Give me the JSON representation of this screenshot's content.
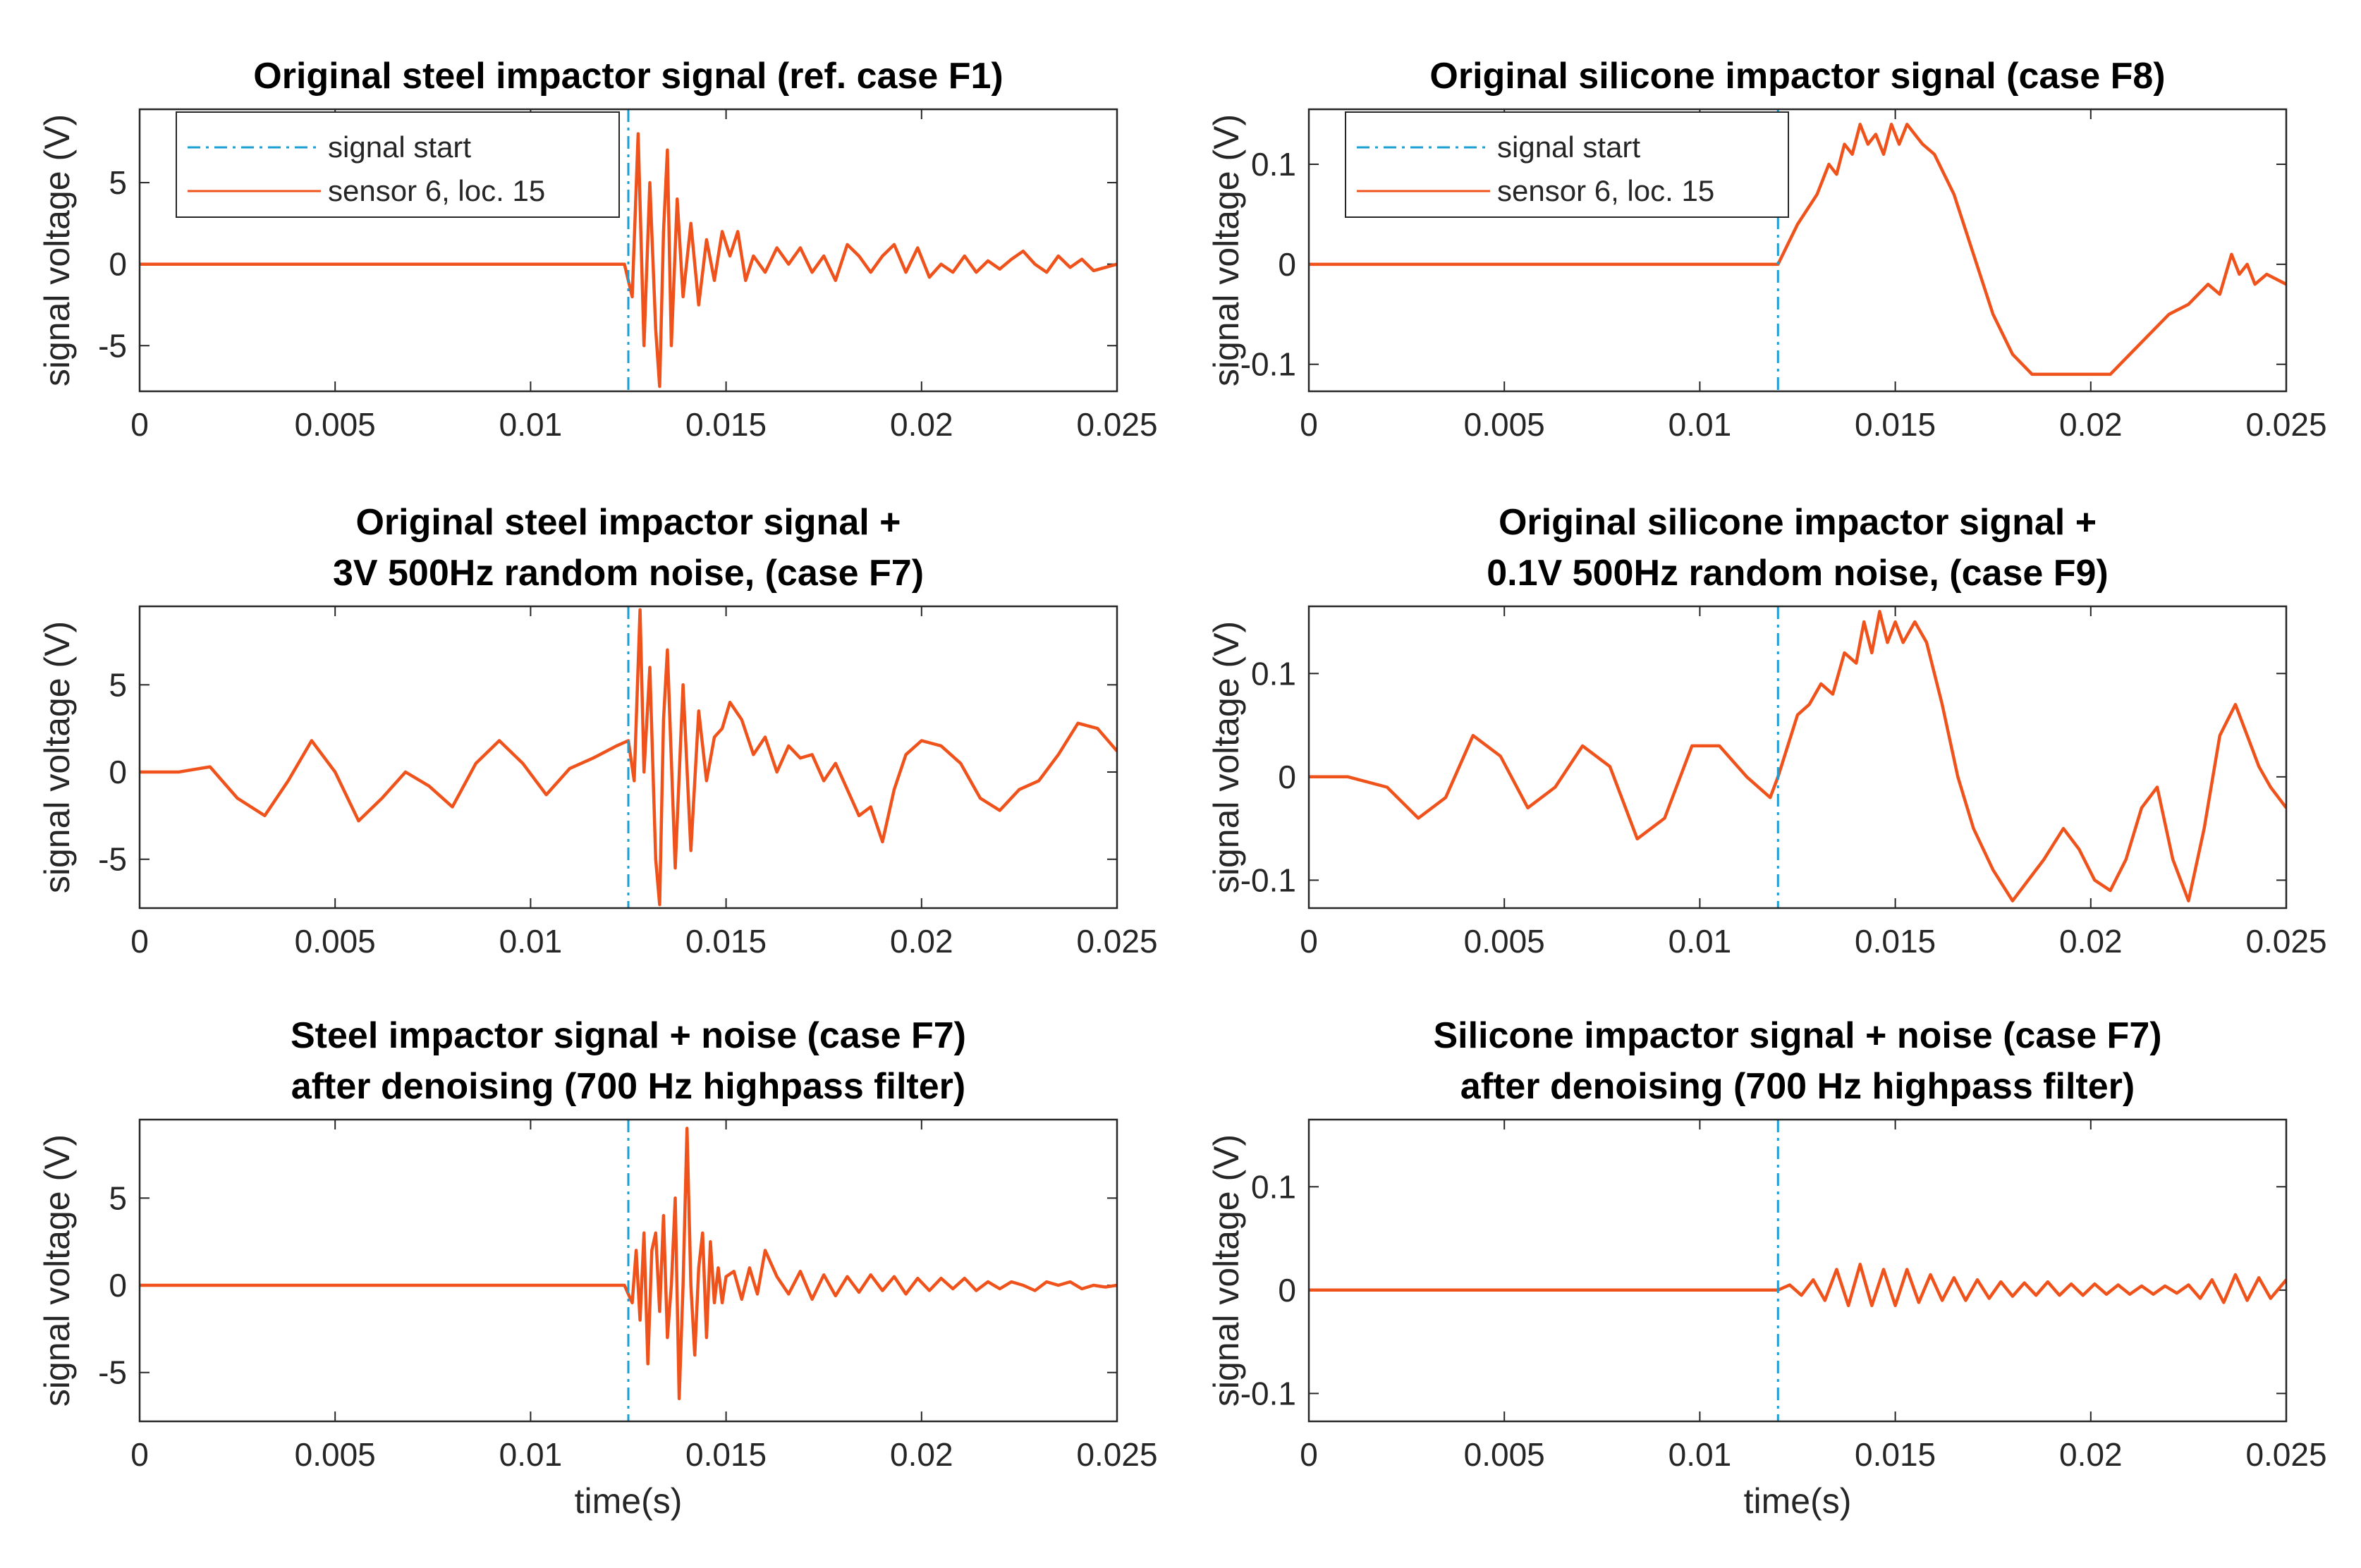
{
  "chart_data": [
    {
      "type": "line",
      "title": [
        "Original steel impactor signal (ref. case F1)"
      ],
      "xlabel": "",
      "ylabel": "signal voltage (V)",
      "xlim": [
        0,
        0.025
      ],
      "ylim": [
        -7.8,
        9.5
      ],
      "xticks": [
        0,
        0.005,
        0.01,
        0.015,
        0.02,
        0.025
      ],
      "xtick_labels": [
        "0",
        "0.005",
        "0.01",
        "0.015",
        "0.02",
        "0.025"
      ],
      "yticks": [
        -5,
        0,
        5
      ],
      "ytick_labels": [
        "-5",
        "0",
        "5"
      ],
      "signal_start": 0.0125,
      "legend": {
        "position": "top-left",
        "entries": [
          "signal start",
          "sensor 6, loc. 15"
        ]
      },
      "series": [
        {
          "name": "sensor 6, loc. 15",
          "color": "#f0521c",
          "x": [
            0,
            0.0124,
            0.0126,
            0.01275,
            0.0129,
            0.01305,
            0.0132,
            0.0133,
            0.0134,
            0.0135,
            0.0136,
            0.01375,
            0.0139,
            0.0141,
            0.0143,
            0.0145,
            0.0147,
            0.0149,
            0.0151,
            0.0153,
            0.0155,
            0.0157,
            0.016,
            0.0163,
            0.0166,
            0.0169,
            0.0172,
            0.0175,
            0.0178,
            0.0181,
            0.0184,
            0.0187,
            0.019,
            0.0193,
            0.0196,
            0.0199,
            0.0202,
            0.0205,
            0.0208,
            0.0211,
            0.0214,
            0.0217,
            0.022,
            0.0223,
            0.0226,
            0.0229,
            0.0232,
            0.0235,
            0.0238,
            0.0241,
            0.0244,
            0.0247,
            0.025
          ],
          "y": [
            0,
            0,
            -2,
            8,
            -5,
            5,
            -4,
            -7.5,
            2,
            7,
            -5,
            4,
            -2,
            2.5,
            -2.5,
            1.5,
            -1,
            2,
            0.5,
            2,
            -1,
            0.5,
            -0.5,
            1,
            0,
            1,
            -0.5,
            0.5,
            -1,
            1.2,
            0.5,
            -0.5,
            0.5,
            1.2,
            -0.5,
            1,
            -0.8,
            0,
            -0.5,
            0.5,
            -0.5,
            0.2,
            -0.3,
            0.3,
            0.8,
            0,
            -0.5,
            0.5,
            -0.2,
            0.3,
            -0.4,
            -0.2,
            0
          ]
        }
      ]
    },
    {
      "type": "line",
      "title": [
        "Original silicone impactor signal (case F8)"
      ],
      "xlabel": "",
      "ylabel": "signal voltage (V)",
      "xlim": [
        0,
        0.025
      ],
      "ylim": [
        -0.127,
        0.155
      ],
      "xticks": [
        0,
        0.005,
        0.01,
        0.015,
        0.02,
        0.025
      ],
      "xtick_labels": [
        "0",
        "0.005",
        "0.01",
        "0.015",
        "0.02",
        "0.025"
      ],
      "yticks": [
        -0.1,
        0,
        0.1
      ],
      "ytick_labels": [
        "-0.1",
        "0",
        "0.1"
      ],
      "signal_start": 0.012,
      "legend": {
        "position": "top-left",
        "entries": [
          "signal start",
          "sensor 6, loc. 15"
        ]
      },
      "series": [
        {
          "name": "sensor 6, loc. 15",
          "color": "#f0521c",
          "x": [
            0,
            0.011,
            0.012,
            0.0125,
            0.013,
            0.0133,
            0.0135,
            0.0137,
            0.0139,
            0.0141,
            0.0143,
            0.0145,
            0.0147,
            0.0149,
            0.0151,
            0.0153,
            0.0155,
            0.0157,
            0.016,
            0.0165,
            0.017,
            0.0175,
            0.018,
            0.0185,
            0.019,
            0.0195,
            0.02,
            0.0205,
            0.021,
            0.0215,
            0.022,
            0.0225,
            0.023,
            0.0233,
            0.0236,
            0.0238,
            0.024,
            0.0242,
            0.0245,
            0.025
          ],
          "y": [
            0,
            0,
            0,
            0.04,
            0.07,
            0.1,
            0.09,
            0.12,
            0.11,
            0.14,
            0.12,
            0.13,
            0.11,
            0.14,
            0.12,
            0.14,
            0.13,
            0.12,
            0.11,
            0.07,
            0.01,
            -0.05,
            -0.09,
            -0.11,
            -0.11,
            -0.11,
            -0.11,
            -0.11,
            -0.09,
            -0.07,
            -0.05,
            -0.04,
            -0.02,
            -0.03,
            0.01,
            -0.01,
            0.0,
            -0.02,
            -0.01,
            -0.02
          ]
        }
      ]
    },
    {
      "type": "line",
      "title": [
        "Original steel impactor signal +",
        "3V 500Hz random noise, (case F7)"
      ],
      "xlabel": "",
      "ylabel": "signal voltage (V)",
      "xlim": [
        0,
        0.025
      ],
      "ylim": [
        -7.8,
        9.5
      ],
      "xticks": [
        0,
        0.005,
        0.01,
        0.015,
        0.02,
        0.025
      ],
      "xtick_labels": [
        "0",
        "0.005",
        "0.01",
        "0.015",
        "0.02",
        "0.025"
      ],
      "yticks": [
        -5,
        0,
        5
      ],
      "ytick_labels": [
        "-5",
        "0",
        "5"
      ],
      "signal_start": 0.0125,
      "series": [
        {
          "name": "sensor 6, loc. 15",
          "color": "#f0521c",
          "x": [
            0,
            0.001,
            0.0018,
            0.0025,
            0.0032,
            0.0038,
            0.0044,
            0.005,
            0.0056,
            0.0062,
            0.0068,
            0.0074,
            0.008,
            0.0086,
            0.0092,
            0.0098,
            0.0104,
            0.011,
            0.0116,
            0.0122,
            0.0125,
            0.01265,
            0.0128,
            0.0129,
            0.01305,
            0.0132,
            0.0133,
            0.0134,
            0.0135,
            0.0137,
            0.0139,
            0.0141,
            0.0143,
            0.0145,
            0.0147,
            0.0149,
            0.0151,
            0.0154,
            0.0157,
            0.016,
            0.0163,
            0.0166,
            0.0169,
            0.0172,
            0.0175,
            0.0178,
            0.0181,
            0.0184,
            0.0187,
            0.019,
            0.0193,
            0.0196,
            0.02,
            0.0205,
            0.021,
            0.0215,
            0.022,
            0.0225,
            0.023,
            0.0235,
            0.024,
            0.0245,
            0.025
          ],
          "y": [
            0,
            0,
            0.3,
            -1.5,
            -2.5,
            -0.5,
            1.8,
            0,
            -2.8,
            -1.5,
            0,
            -0.8,
            -2,
            0.5,
            1.8,
            0.5,
            -1.3,
            0.2,
            0.8,
            1.5,
            1.8,
            -0.5,
            9.3,
            0,
            6,
            -5,
            -7.6,
            3,
            7,
            -5.5,
            5,
            -4.5,
            3.5,
            -0.5,
            2,
            2.5,
            4,
            3,
            1,
            2,
            0,
            1.5,
            0.8,
            1,
            -0.5,
            0.5,
            -1,
            -2.5,
            -2,
            -4,
            -1,
            1,
            1.8,
            1.5,
            0.5,
            -1.5,
            -2.2,
            -1,
            -0.5,
            1,
            2.8,
            2.5,
            1.2
          ]
        }
      ]
    },
    {
      "type": "line",
      "title": [
        "Original silicone impactor signal +",
        "0.1V 500Hz random noise, (case F9)"
      ],
      "xlabel": "",
      "ylabel": "signal voltage (V)",
      "xlim": [
        0,
        0.025
      ],
      "ylim": [
        -0.127,
        0.165
      ],
      "xticks": [
        0,
        0.005,
        0.01,
        0.015,
        0.02,
        0.025
      ],
      "xtick_labels": [
        "0",
        "0.005",
        "0.01",
        "0.015",
        "0.02",
        "0.025"
      ],
      "yticks": [
        -0.1,
        0,
        0.1
      ],
      "ytick_labels": [
        "-0.1",
        "0",
        "0.1"
      ],
      "signal_start": 0.012,
      "series": [
        {
          "name": "sensor 6, loc. 15",
          "color": "#f0521c",
          "x": [
            0,
            0.001,
            0.002,
            0.0028,
            0.0035,
            0.0042,
            0.0049,
            0.0056,
            0.0063,
            0.007,
            0.0077,
            0.0084,
            0.0091,
            0.0098,
            0.0105,
            0.0112,
            0.0118,
            0.012,
            0.0125,
            0.0128,
            0.0131,
            0.0134,
            0.0137,
            0.014,
            0.0142,
            0.0144,
            0.0146,
            0.0148,
            0.015,
            0.0152,
            0.0155,
            0.0158,
            0.0162,
            0.0166,
            0.017,
            0.0175,
            0.018,
            0.0184,
            0.0188,
            0.0193,
            0.0197,
            0.0201,
            0.0205,
            0.0209,
            0.0213,
            0.0217,
            0.0221,
            0.0225,
            0.0229,
            0.0233,
            0.0237,
            0.024,
            0.0243,
            0.0246,
            0.0248,
            0.025
          ],
          "y": [
            0,
            0,
            -0.01,
            -0.04,
            -0.02,
            0.04,
            0.02,
            -0.03,
            -0.01,
            0.03,
            0.01,
            -0.06,
            -0.04,
            0.03,
            0.03,
            0.0,
            -0.02,
            0.0,
            0.06,
            0.07,
            0.09,
            0.08,
            0.12,
            0.11,
            0.15,
            0.12,
            0.16,
            0.13,
            0.15,
            0.13,
            0.15,
            0.13,
            0.07,
            0.0,
            -0.05,
            -0.09,
            -0.12,
            -0.1,
            -0.08,
            -0.05,
            -0.07,
            -0.1,
            -0.11,
            -0.08,
            -0.03,
            -0.01,
            -0.08,
            -0.12,
            -0.05,
            0.04,
            0.07,
            0.04,
            0.01,
            -0.01,
            -0.02,
            -0.03
          ]
        }
      ]
    },
    {
      "type": "line",
      "title": [
        "Steel impactor signal + noise (case F7)",
        "after denoising (700 Hz highpass filter)"
      ],
      "xlabel": "time(s)",
      "ylabel": "signal voltage (V)",
      "xlim": [
        0,
        0.025
      ],
      "ylim": [
        -7.8,
        9.5
      ],
      "xticks": [
        0,
        0.005,
        0.01,
        0.015,
        0.02,
        0.025
      ],
      "xtick_labels": [
        "0",
        "0.005",
        "0.01",
        "0.015",
        "0.02",
        "0.025"
      ],
      "yticks": [
        -5,
        0,
        5
      ],
      "ytick_labels": [
        "-5",
        "0",
        "5"
      ],
      "signal_start": 0.0125,
      "series": [
        {
          "name": "sensor 6, loc. 15",
          "color": "#f0521c",
          "x": [
            0,
            0.0124,
            0.0126,
            0.0127,
            0.0128,
            0.0129,
            0.013,
            0.0131,
            0.0132,
            0.0133,
            0.0134,
            0.0135,
            0.0136,
            0.0137,
            0.0138,
            0.0139,
            0.014,
            0.0141,
            0.0142,
            0.0143,
            0.0144,
            0.0145,
            0.0146,
            0.0147,
            0.0148,
            0.0149,
            0.015,
            0.0152,
            0.0154,
            0.0156,
            0.0158,
            0.016,
            0.0163,
            0.0166,
            0.0169,
            0.0172,
            0.0175,
            0.0178,
            0.0181,
            0.0184,
            0.0187,
            0.019,
            0.0193,
            0.0196,
            0.0199,
            0.0202,
            0.0205,
            0.0208,
            0.0211,
            0.0214,
            0.0217,
            0.022,
            0.0223,
            0.0226,
            0.0229,
            0.0232,
            0.0235,
            0.0238,
            0.0241,
            0.0244,
            0.0247,
            0.025
          ],
          "y": [
            0,
            0,
            -1,
            2,
            -2,
            3,
            -4.5,
            2,
            3,
            -1.5,
            4,
            -3,
            0,
            5,
            -6.5,
            0,
            9,
            0,
            -4,
            1,
            3,
            -3,
            2.5,
            -1,
            1,
            -1,
            0.5,
            0.8,
            -0.8,
            1,
            -0.5,
            2,
            0.5,
            -0.5,
            0.8,
            -0.8,
            0.6,
            -0.6,
            0.5,
            -0.4,
            0.6,
            -0.3,
            0.5,
            -0.5,
            0.4,
            -0.3,
            0.4,
            -0.2,
            0.4,
            -0.3,
            0.2,
            -0.2,
            0.2,
            0,
            -0.3,
            0.2,
            0,
            0.2,
            -0.2,
            0,
            -0.1,
            0
          ]
        }
      ]
    },
    {
      "type": "line",
      "title": [
        "Silicone impactor signal + noise (case F7)",
        "after denoising (700 Hz highpass filter)"
      ],
      "xlabel": "time(s)",
      "ylabel": "signal voltage (V)",
      "xlim": [
        0,
        0.025
      ],
      "ylim": [
        -0.127,
        0.165
      ],
      "xticks": [
        0,
        0.005,
        0.01,
        0.015,
        0.02,
        0.025
      ],
      "xtick_labels": [
        "0",
        "0.005",
        "0.01",
        "0.015",
        "0.02",
        "0.025"
      ],
      "yticks": [
        -0.1,
        0,
        0.1
      ],
      "ytick_labels": [
        "-0.1",
        "0",
        "0.1"
      ],
      "signal_start": 0.012,
      "series": [
        {
          "name": "sensor 6, loc. 15",
          "color": "#f0521c",
          "x": [
            0,
            0.012,
            0.0123,
            0.0126,
            0.0129,
            0.0132,
            0.0135,
            0.0138,
            0.0141,
            0.0144,
            0.0147,
            0.015,
            0.0153,
            0.0156,
            0.0159,
            0.0162,
            0.0165,
            0.0168,
            0.0171,
            0.0174,
            0.0177,
            0.018,
            0.0183,
            0.0186,
            0.0189,
            0.0192,
            0.0195,
            0.0198,
            0.0201,
            0.0204,
            0.0207,
            0.021,
            0.0213,
            0.0216,
            0.0219,
            0.0222,
            0.0225,
            0.0228,
            0.0231,
            0.0234,
            0.0237,
            0.024,
            0.0243,
            0.0246,
            0.025
          ],
          "y": [
            0,
            0,
            0.005,
            -0.005,
            0.01,
            -0.01,
            0.02,
            -0.015,
            0.025,
            -0.015,
            0.02,
            -0.015,
            0.02,
            -0.012,
            0.015,
            -0.01,
            0.012,
            -0.01,
            0.01,
            -0.008,
            0.008,
            -0.006,
            0.007,
            -0.005,
            0.008,
            -0.005,
            0.006,
            -0.005,
            0.006,
            -0.004,
            0.005,
            -0.004,
            0.004,
            -0.004,
            0.004,
            -0.003,
            0.005,
            -0.008,
            0.01,
            -0.012,
            0.015,
            -0.01,
            0.012,
            -0.008,
            0.01
          ]
        }
      ]
    }
  ]
}
